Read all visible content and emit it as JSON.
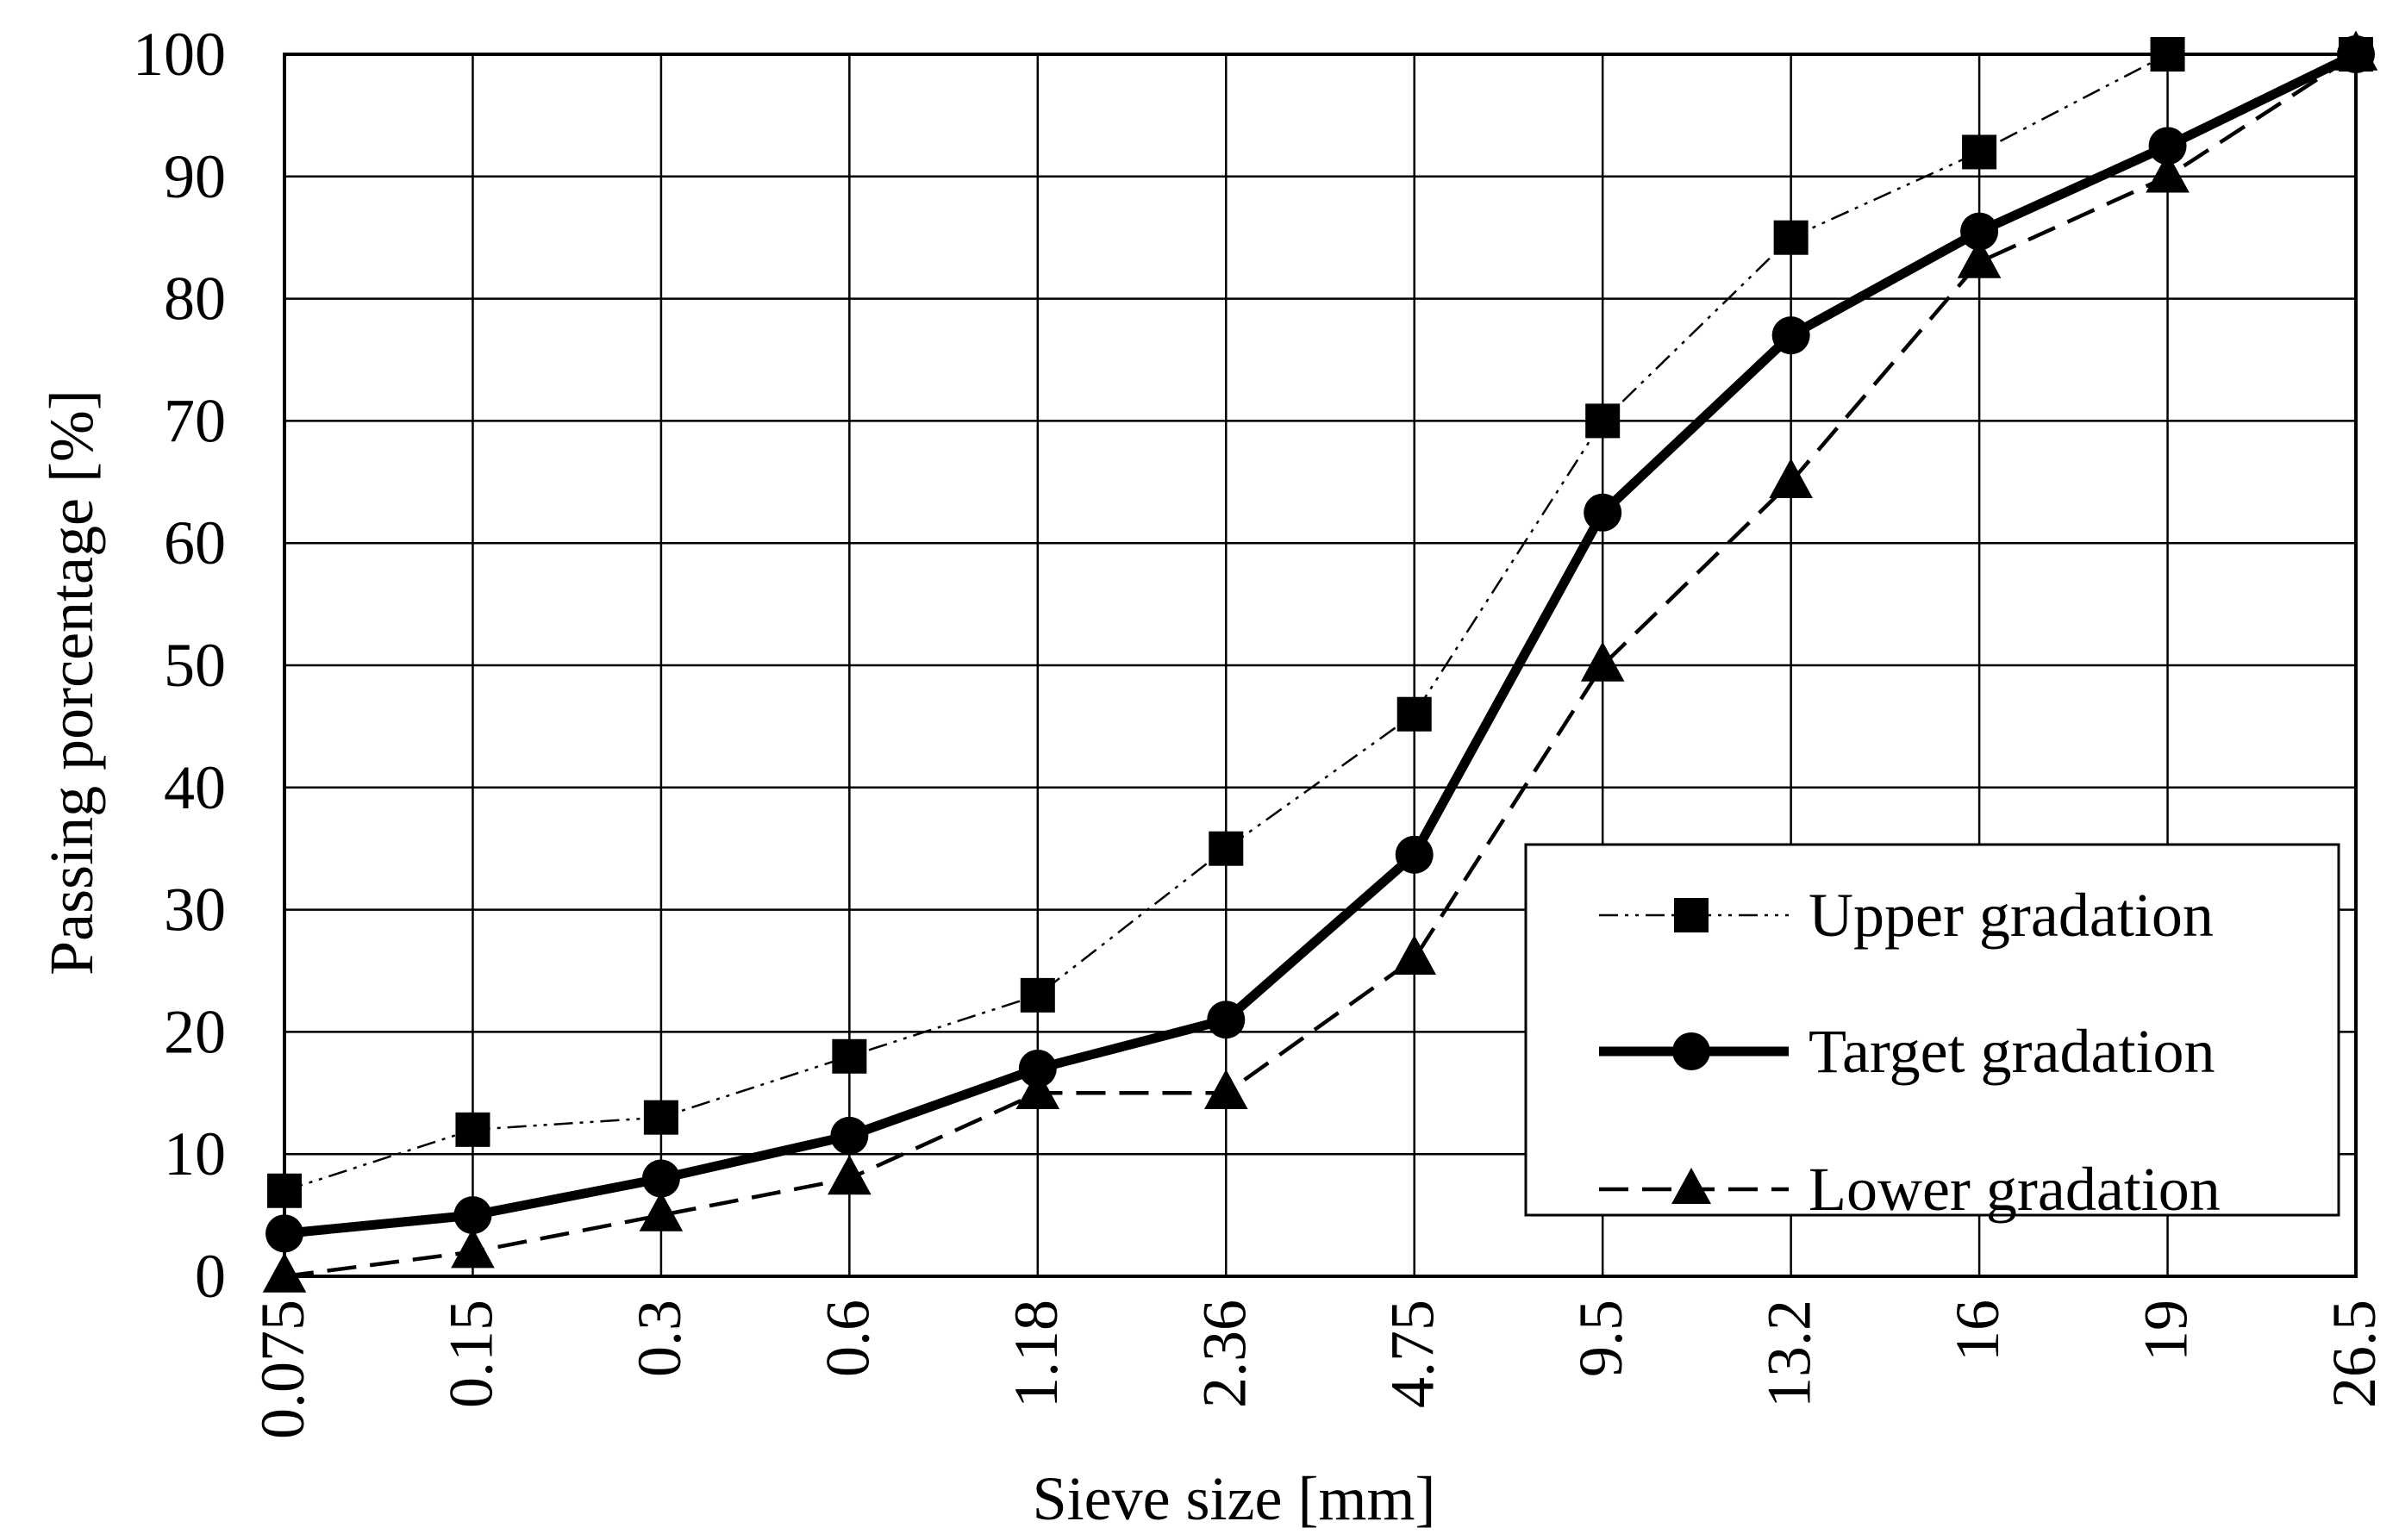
{
  "chart_data": {
    "type": "line",
    "xlabel": "Sieve size [mm]",
    "ylabel": "Passing porcentage [%]",
    "categories": [
      "0.075",
      "0.15",
      "0.3",
      "0.6",
      "1.18",
      "2.36",
      "4.75",
      "9.5",
      "13.2",
      "16",
      "19",
      "26.5"
    ],
    "ylim": [
      0,
      100
    ],
    "yticks": [
      "0",
      "10",
      "20",
      "30",
      "40",
      "50",
      "60",
      "70",
      "80",
      "90",
      "100"
    ],
    "grid": true,
    "legend_position": "bottom-right",
    "series": [
      {
        "name": "Upper gradation",
        "style": "dash-dot-dot",
        "marker": "square",
        "values": [
          7,
          12,
          13,
          18,
          23,
          35,
          46,
          70,
          85,
          92,
          100,
          100
        ]
      },
      {
        "name": "Target gradation",
        "style": "solid-thick",
        "marker": "circle",
        "values": [
          3.5,
          5,
          8,
          11.5,
          17,
          21,
          34.5,
          62.5,
          77,
          85.5,
          92.5,
          100
        ]
      },
      {
        "name": "Lower gradation",
        "style": "dashed",
        "marker": "triangle",
        "values": [
          0,
          2,
          5,
          8,
          15,
          15,
          26,
          50,
          65,
          83,
          90,
          100
        ]
      }
    ],
    "colors": {
      "line": "#000000",
      "grid": "#000000",
      "background": "#ffffff"
    }
  }
}
